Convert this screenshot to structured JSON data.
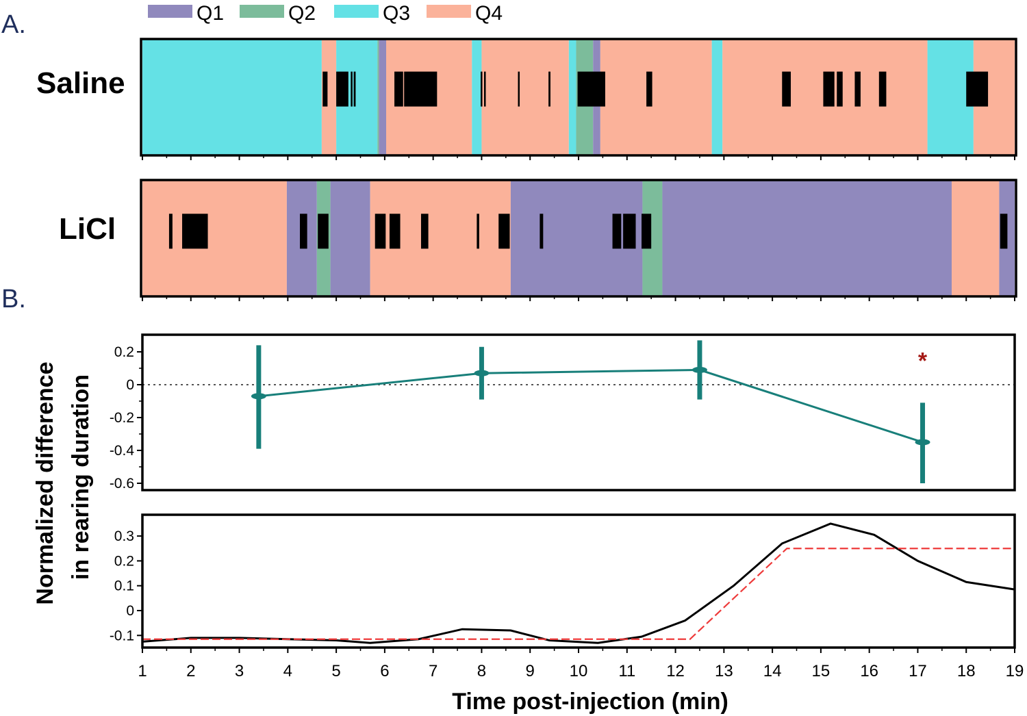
{
  "panels": {
    "a": "A.",
    "b": "B."
  },
  "legend": [
    {
      "label": "Q1",
      "color": "#9089bd"
    },
    {
      "label": "Q2",
      "color": "#7cbc9b"
    },
    {
      "label": "Q3",
      "color": "#64e1e5"
    },
    {
      "label": "Q4",
      "color": "#fbb29a"
    }
  ],
  "chart_data": [
    {
      "type": "timeline",
      "label": "Saline",
      "xlim": [
        1,
        19
      ],
      "segments": [
        {
          "start": 1.0,
          "end": 4.7,
          "q": "Q3"
        },
        {
          "start": 4.7,
          "end": 5.0,
          "q": "Q4"
        },
        {
          "start": 5.0,
          "end": 5.85,
          "q": "Q3"
        },
        {
          "start": 5.85,
          "end": 5.88,
          "q": "Q2"
        },
        {
          "start": 5.88,
          "end": 6.03,
          "q": "Q1"
        },
        {
          "start": 6.03,
          "end": 7.8,
          "q": "Q4"
        },
        {
          "start": 7.8,
          "end": 8.0,
          "q": "Q3"
        },
        {
          "start": 8.0,
          "end": 9.8,
          "q": "Q4"
        },
        {
          "start": 9.8,
          "end": 9.95,
          "q": "Q3"
        },
        {
          "start": 9.95,
          "end": 10.3,
          "q": "Q2"
        },
        {
          "start": 10.3,
          "end": 10.45,
          "q": "Q1"
        },
        {
          "start": 10.45,
          "end": 12.75,
          "q": "Q4"
        },
        {
          "start": 12.75,
          "end": 12.97,
          "q": "Q3"
        },
        {
          "start": 12.97,
          "end": 17.2,
          "q": "Q4"
        },
        {
          "start": 17.2,
          "end": 18.15,
          "q": "Q3"
        },
        {
          "start": 18.15,
          "end": 19.0,
          "q": "Q4"
        }
      ],
      "rearing_events": [
        [
          4.72,
          4.82
        ],
        [
          5.0,
          5.25
        ],
        [
          5.3,
          5.33
        ],
        [
          5.36,
          5.4
        ],
        [
          6.2,
          6.38
        ],
        [
          6.4,
          7.08
        ],
        [
          7.98,
          8.0
        ],
        [
          8.05,
          8.07
        ],
        [
          8.75,
          8.78
        ],
        [
          9.38,
          9.42
        ],
        [
          9.98,
          10.55
        ],
        [
          11.4,
          11.52
        ],
        [
          14.2,
          14.38
        ],
        [
          15.05,
          15.28
        ],
        [
          15.33,
          15.45
        ],
        [
          15.7,
          15.82
        ],
        [
          16.2,
          16.35
        ],
        [
          18.0,
          18.45
        ]
      ]
    },
    {
      "type": "timeline",
      "label": "LiCl",
      "xlim": [
        1,
        19
      ],
      "segments": [
        {
          "start": 1.0,
          "end": 3.98,
          "q": "Q4"
        },
        {
          "start": 3.98,
          "end": 4.6,
          "q": "Q1"
        },
        {
          "start": 4.6,
          "end": 4.88,
          "q": "Q2"
        },
        {
          "start": 4.88,
          "end": 5.7,
          "q": "Q1"
        },
        {
          "start": 5.7,
          "end": 8.6,
          "q": "Q4"
        },
        {
          "start": 8.6,
          "end": 11.32,
          "q": "Q1"
        },
        {
          "start": 11.32,
          "end": 11.73,
          "q": "Q2"
        },
        {
          "start": 11.73,
          "end": 17.7,
          "q": "Q1"
        },
        {
          "start": 17.7,
          "end": 18.68,
          "q": "Q4"
        },
        {
          "start": 18.68,
          "end": 19.0,
          "q": "Q1"
        }
      ],
      "rearing_events": [
        [
          1.55,
          1.62
        ],
        [
          1.82,
          2.35
        ],
        [
          4.25,
          4.4
        ],
        [
          4.62,
          4.84
        ],
        [
          5.8,
          6.02
        ],
        [
          6.1,
          6.32
        ],
        [
          6.75,
          6.9
        ],
        [
          7.9,
          7.95
        ],
        [
          8.35,
          8.58
        ],
        [
          9.2,
          9.27
        ],
        [
          10.7,
          10.88
        ],
        [
          10.92,
          11.18
        ],
        [
          11.3,
          11.5
        ],
        [
          18.7,
          18.85
        ]
      ]
    },
    {
      "type": "line",
      "ylabel": "Normalized difference in rearing duration",
      "xlim": [
        1,
        19
      ],
      "ylim": [
        -0.64,
        0.3
      ],
      "yticks": [
        0.2,
        0,
        -0.2,
        -0.4,
        -0.6
      ],
      "ytick_labels": [
        "0.2",
        "0",
        "-0.2",
        "-0.4",
        "-0.6"
      ],
      "zero_line": true,
      "color": "#187f7a",
      "points": [
        {
          "x": 3.4,
          "y": -0.07,
          "err_low": -0.39,
          "err_high": 0.24
        },
        {
          "x": 8.0,
          "y": 0.07,
          "err_low": -0.09,
          "err_high": 0.23
        },
        {
          "x": 12.5,
          "y": 0.09,
          "err_low": -0.09,
          "err_high": 0.27
        },
        {
          "x": 17.1,
          "y": -0.35,
          "err_low": -0.6,
          "err_high": -0.11
        }
      ],
      "annotation": {
        "text": "*",
        "x": 17.1,
        "y": 0.19,
        "color": "#a51a16"
      }
    },
    {
      "type": "line",
      "xlabel": "Time post-injection (min)",
      "xlim": [
        1,
        19
      ],
      "ylim": [
        -0.15,
        0.38
      ],
      "xticks": [
        1,
        2,
        3,
        4,
        5,
        6,
        7,
        8,
        9,
        10,
        11,
        12,
        13,
        14,
        15,
        16,
        17,
        18,
        19
      ],
      "xtick_labels": [
        "1",
        "2",
        "3",
        "4",
        "5",
        "6",
        "7",
        "8",
        "9",
        "10",
        "11",
        "12",
        "13",
        "14",
        "15",
        "16",
        "17",
        "18",
        "19"
      ],
      "yticks": [
        0.3,
        0.2,
        0.1,
        0,
        -0.1
      ],
      "ytick_labels": [
        "0.3",
        "0.2",
        "0.1",
        "0",
        "-0.1"
      ],
      "series": [
        {
          "style": "solid",
          "color": "#000000",
          "x": [
            1,
            2,
            3,
            4,
            5,
            5.7,
            6.7,
            7.6,
            8.6,
            9.4,
            10.4,
            11.3,
            12.2,
            13.2,
            14.2,
            15.2,
            16.1,
            17.0,
            18.0,
            19.0
          ],
          "y": [
            -0.125,
            -0.11,
            -0.11,
            -0.115,
            -0.12,
            -0.13,
            -0.115,
            -0.075,
            -0.08,
            -0.12,
            -0.13,
            -0.105,
            -0.04,
            0.1,
            0.27,
            0.35,
            0.305,
            0.2,
            0.115,
            0.085
          ]
        },
        {
          "style": "dashed",
          "color": "#ee3a3a",
          "x": [
            1,
            12.3,
            14.3,
            19
          ],
          "y": [
            -0.115,
            -0.115,
            0.25,
            0.25
          ]
        }
      ]
    }
  ]
}
